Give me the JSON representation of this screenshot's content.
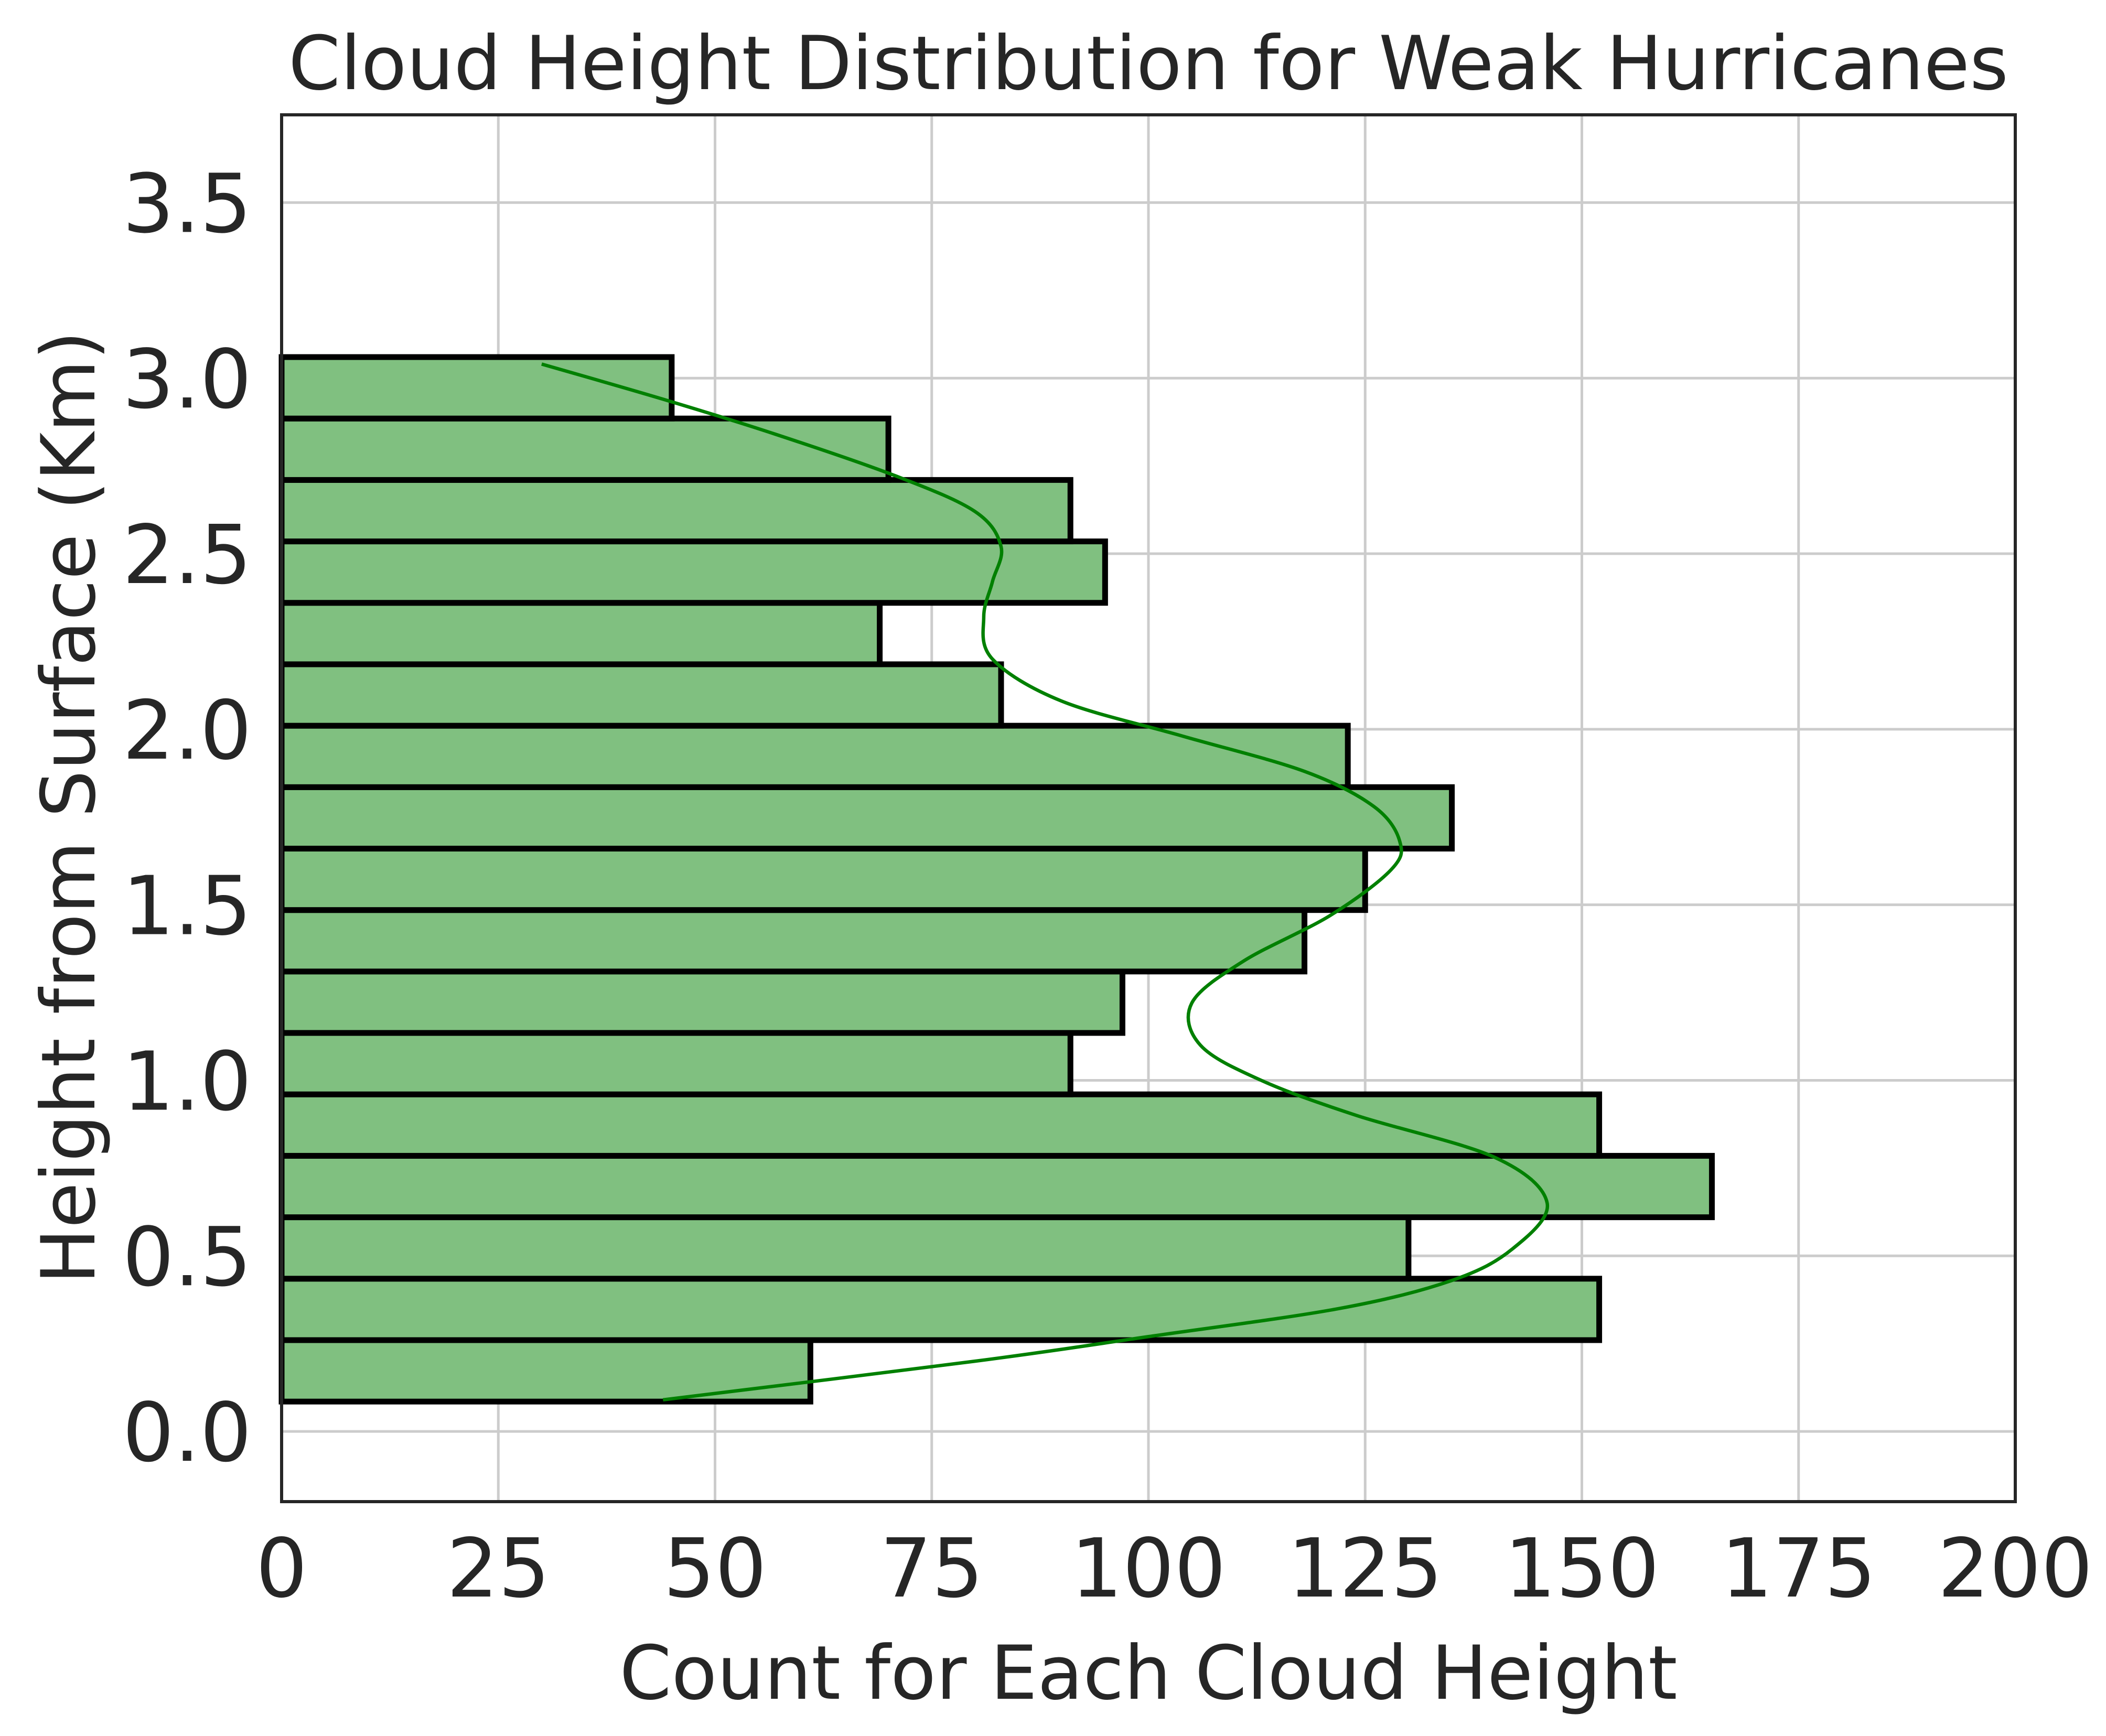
{
  "chart_data": {
    "type": "bar",
    "orientation": "horizontal",
    "title": "Cloud Height Distribution for Weak Hurricanes",
    "xlabel": "Count for Each Cloud Height",
    "ylabel": "Height from Surface (Km)",
    "xlim": [
      0,
      200
    ],
    "ylim": [
      -0.2,
      3.75
    ],
    "xticks": [
      "0",
      "25",
      "50",
      "75",
      "100",
      "125",
      "150",
      "175",
      "200"
    ],
    "yticks": [
      "0.0",
      "0.5",
      "1.0",
      "1.5",
      "2.0",
      "2.5",
      "3.0",
      "3.5"
    ],
    "xtick_values": [
      0,
      25,
      50,
      75,
      100,
      125,
      150,
      175,
      200
    ],
    "ytick_values": [
      0,
      0.5,
      1.0,
      1.5,
      2.0,
      2.5,
      3.0,
      3.5
    ],
    "bins": [
      {
        "y0": 0.085,
        "y1": 0.26,
        "count": 61
      },
      {
        "y0": 0.26,
        "y1": 0.435,
        "count": 152
      },
      {
        "y0": 0.435,
        "y1": 0.61,
        "count": 130
      },
      {
        "y0": 0.61,
        "y1": 0.785,
        "count": 165
      },
      {
        "y0": 0.785,
        "y1": 0.96,
        "count": 152
      },
      {
        "y0": 0.96,
        "y1": 1.135,
        "count": 91
      },
      {
        "y0": 1.135,
        "y1": 1.31,
        "count": 97
      },
      {
        "y0": 1.31,
        "y1": 1.485,
        "count": 118
      },
      {
        "y0": 1.485,
        "y1": 1.66,
        "count": 125
      },
      {
        "y0": 1.66,
        "y1": 1.835,
        "count": 135
      },
      {
        "y0": 1.835,
        "y1": 2.01,
        "count": 123
      },
      {
        "y0": 2.01,
        "y1": 2.185,
        "count": 83
      },
      {
        "y0": 2.185,
        "y1": 2.36,
        "count": 69
      },
      {
        "y0": 2.36,
        "y1": 2.535,
        "count": 95
      },
      {
        "y0": 2.535,
        "y1": 2.71,
        "count": 91
      },
      {
        "y0": 2.71,
        "y1": 2.885,
        "count": 70
      },
      {
        "y0": 2.885,
        "y1": 3.06,
        "count": 45
      }
    ],
    "kde_curve": [
      {
        "y": 0.09,
        "count": 44
      },
      {
        "y": 0.2,
        "count": 80
      },
      {
        "y": 0.27,
        "count": 100
      },
      {
        "y": 0.35,
        "count": 122
      },
      {
        "y": 0.43,
        "count": 135
      },
      {
        "y": 0.52,
        "count": 142
      },
      {
        "y": 0.65,
        "count": 146
      },
      {
        "y": 0.78,
        "count": 140
      },
      {
        "y": 0.9,
        "count": 124
      },
      {
        "y": 1.0,
        "count": 113
      },
      {
        "y": 1.1,
        "count": 106
      },
      {
        "y": 1.22,
        "count": 105
      },
      {
        "y": 1.34,
        "count": 111
      },
      {
        "y": 1.47,
        "count": 121
      },
      {
        "y": 1.6,
        "count": 128
      },
      {
        "y": 1.68,
        "count": 129
      },
      {
        "y": 1.78,
        "count": 126
      },
      {
        "y": 1.88,
        "count": 118
      },
      {
        "y": 1.98,
        "count": 104
      },
      {
        "y": 2.08,
        "count": 90
      },
      {
        "y": 2.2,
        "count": 82
      },
      {
        "y": 2.32,
        "count": 81
      },
      {
        "y": 2.42,
        "count": 82
      },
      {
        "y": 2.52,
        "count": 83
      },
      {
        "y": 2.62,
        "count": 80
      },
      {
        "y": 2.72,
        "count": 71
      },
      {
        "y": 2.84,
        "count": 57
      },
      {
        "y": 2.94,
        "count": 44
      },
      {
        "y": 3.04,
        "count": 30
      }
    ],
    "colors": {
      "bar_fill": "#80c080",
      "bar_edge": "#000000",
      "kde_line": "#008000",
      "grid": "#cccccc",
      "text": "#262626"
    },
    "grid": true
  }
}
